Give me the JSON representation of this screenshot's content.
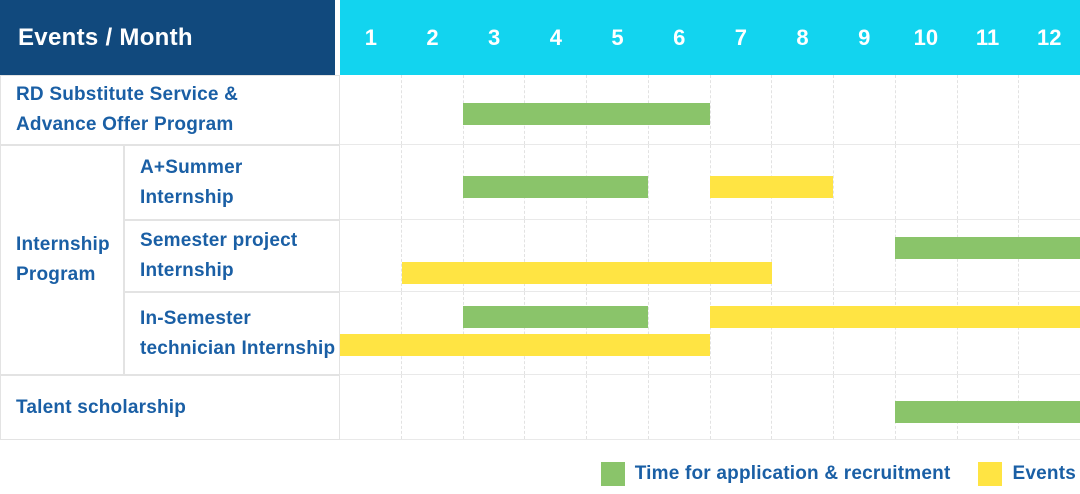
{
  "colors": {
    "navy": "#11497d",
    "cyan": "#12d4ef",
    "green": "#8ac46a",
    "yellow": "#ffe443",
    "text_blue": "#1a5fa5",
    "grid": "#e3e3e3"
  },
  "header": {
    "title": "Events / Month",
    "months": [
      "1",
      "2",
      "3",
      "4",
      "5",
      "6",
      "7",
      "8",
      "9",
      "10",
      "11",
      "12"
    ]
  },
  "legend": {
    "items": [
      {
        "swatch": "green",
        "label": "Time for application & recruitment"
      },
      {
        "swatch": "yellow",
        "label": "Events"
      }
    ]
  },
  "chart_data": {
    "type": "gantt",
    "title": "Events / Month",
    "x_axis": {
      "label": "Month",
      "ticks": [
        "1",
        "2",
        "3",
        "4",
        "5",
        "6",
        "7",
        "8",
        "9",
        "10",
        "11",
        "12"
      ],
      "range": [
        1,
        12
      ]
    },
    "series_legend": [
      {
        "name": "Time for application & recruitment",
        "color": "green"
      },
      {
        "name": "Events",
        "color": "yellow"
      }
    ],
    "group_label_lines": [
      "Internship",
      "Program"
    ],
    "rows": [
      {
        "group": "",
        "label": "RD Substitute Service & Advance Offer Program",
        "label_lines": [
          "RD Substitute Service &",
          "Advance Offer Program"
        ],
        "bars": [
          {
            "series": "Time for application & recruitment",
            "color": "green",
            "start_month": 3,
            "end_month": 6,
            "lane": "single"
          }
        ]
      },
      {
        "group": "Internship Program",
        "label": "A+Summer Internship",
        "label_lines": [
          "A+Summer",
          "Internship"
        ],
        "bars": [
          {
            "series": "Time for application & recruitment",
            "color": "green",
            "start_month": 3,
            "end_month": 5,
            "lane": "single"
          },
          {
            "series": "Events",
            "color": "yellow",
            "start_month": 7,
            "end_month": 8,
            "lane": "single"
          }
        ]
      },
      {
        "group": "Internship Program",
        "label": "Semester project Internship",
        "label_lines": [
          "Semester project",
          "Internship"
        ],
        "bars": [
          {
            "series": "Time for application & recruitment",
            "color": "green",
            "start_month": 10,
            "end_month": 12,
            "lane": "top"
          },
          {
            "series": "Events",
            "color": "yellow",
            "start_month": 2,
            "end_month": 7,
            "lane": "bottom"
          }
        ]
      },
      {
        "group": "Internship Program",
        "label": "In-Semester technician Internship",
        "label_lines": [
          "In-Semester",
          "technician Internship"
        ],
        "bars": [
          {
            "series": "Time for application & recruitment",
            "color": "green",
            "start_month": 3,
            "end_month": 5,
            "lane": "top"
          },
          {
            "series": "Events",
            "color": "yellow",
            "start_month": 7,
            "end_month": 12,
            "lane": "top"
          },
          {
            "series": "Events",
            "color": "yellow",
            "start_month": 1,
            "end_month": 6,
            "lane": "bottom"
          }
        ]
      },
      {
        "group": "",
        "label": "Talent scholarship",
        "label_lines": [
          "Talent scholarship"
        ],
        "bars": [
          {
            "series": "Time for application & recruitment",
            "color": "green",
            "start_month": 10,
            "end_month": 12,
            "lane": "single"
          }
        ]
      }
    ]
  }
}
